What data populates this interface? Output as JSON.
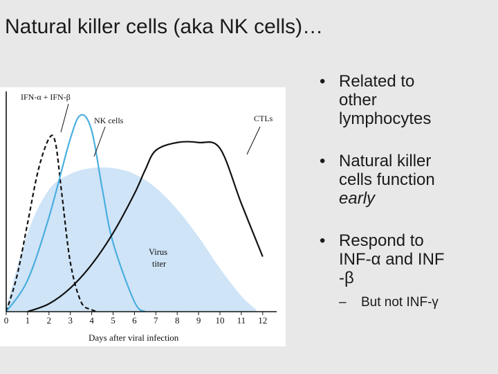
{
  "slide": {
    "title": "Natural killer cells (aka NK cells)…"
  },
  "chart_data": {
    "type": "line",
    "xlabel": "Days after viral infection",
    "x_ticks": [
      "0",
      "1",
      "2",
      "3",
      "4",
      "5",
      "6",
      "7",
      "8",
      "9",
      "10",
      "11",
      "12"
    ],
    "xlim": [
      0,
      12.6
    ],
    "annotations": [
      {
        "text": "IFN-α + IFN-β"
      },
      {
        "text": "NK cells"
      },
      {
        "text": "CTLs"
      },
      {
        "text": "Virus"
      },
      {
        "text": "titer"
      }
    ],
    "colors": {
      "ifn": "#111111",
      "nk": "#49aedf",
      "ctl": "#111111",
      "virus_fill": "#cfe4f7"
    },
    "series": [
      {
        "name": "Virus titer",
        "style": "area",
        "x": [
          0,
          1,
          2,
          3,
          4,
          5,
          6,
          7,
          8,
          9,
          10,
          11,
          11.7
        ],
        "y": [
          0.02,
          0.4,
          0.62,
          0.7,
          0.73,
          0.73,
          0.7,
          0.63,
          0.52,
          0.38,
          0.22,
          0.08,
          0.01
        ]
      },
      {
        "name": "IFN-α + IFN-β",
        "style": "dashed",
        "x": [
          0,
          0.5,
          1,
          1.5,
          2,
          2.3,
          2.6,
          3,
          3.5,
          4,
          4.3
        ],
        "y": [
          0,
          0.18,
          0.45,
          0.72,
          0.88,
          0.86,
          0.6,
          0.25,
          0.05,
          0.01,
          0
        ]
      },
      {
        "name": "NK cells",
        "style": "solid",
        "x": [
          0,
          1,
          2,
          3,
          3.5,
          4,
          4.5,
          5,
          6,
          6.5
        ],
        "y": [
          0,
          0.16,
          0.48,
          0.88,
          1.0,
          0.92,
          0.62,
          0.35,
          0.05,
          0
        ]
      },
      {
        "name": "CTLs",
        "style": "solid",
        "x": [
          1,
          2,
          3,
          4,
          5,
          6,
          6.5,
          7,
          8,
          9,
          10,
          11,
          12
        ],
        "y": [
          0,
          0.04,
          0.12,
          0.24,
          0.4,
          0.6,
          0.72,
          0.82,
          0.86,
          0.86,
          0.83,
          0.55,
          0.28
        ]
      }
    ]
  },
  "bullets": [
    {
      "lines": [
        "Related to",
        "other",
        "lymphocytes"
      ]
    },
    {
      "lines": [
        "Natural killer",
        "cells function",
        "early"
      ]
    },
    {
      "lines": [
        "Respond to",
        "INF-α and  INF",
        "-β"
      ]
    }
  ],
  "sub_bullet": "But not INF-γ"
}
